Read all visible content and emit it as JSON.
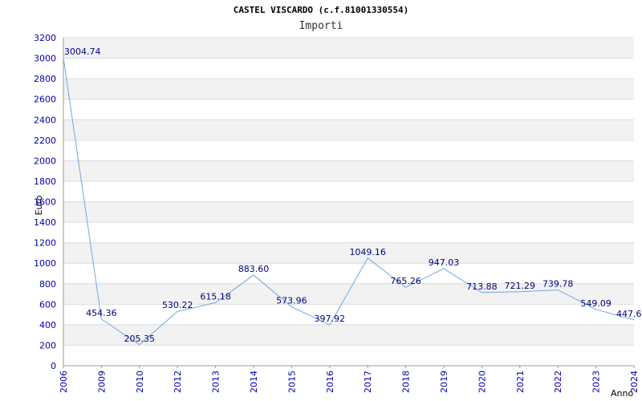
{
  "title": "CASTEL VISCARDO (c.f.81001330554)",
  "subtitle": "Importi",
  "colors": {
    "line": "#6fa8dc",
    "band": "#f2f2f2",
    "grid": "#dcdcdc",
    "axis": "#999999",
    "tick": "#0000aa"
  },
  "chart_data": {
    "type": "line",
    "title": "CASTEL VISCARDO (c.f.81001330554)",
    "subtitle": "Importi",
    "xlabel": "Anno",
    "ylabel": "Euro",
    "ylim": [
      0,
      3200
    ],
    "ystep": 200,
    "grid": true,
    "categories": [
      "2006",
      "2009",
      "2010",
      "2012",
      "2013",
      "2014",
      "2015",
      "2016",
      "2017",
      "2018",
      "2019",
      "2020",
      "2021",
      "2022",
      "2023",
      "2024"
    ],
    "series": [
      {
        "values": [
          3004.74,
          454.36,
          205.35,
          530.22,
          615.18,
          883.6,
          573.96,
          397.92,
          1049.16,
          765.26,
          947.03,
          713.88,
          721.29,
          739.78,
          549.09,
          447.6
        ],
        "labels": [
          "3004.74",
          "454.36",
          "205.35",
          "530.22",
          "615.18",
          "883.60",
          "573.96",
          "397.92",
          "1049.16",
          "765.26",
          "947.03",
          "713.88",
          "721.29",
          "739.78",
          "549.09",
          "447.6"
        ]
      }
    ]
  }
}
